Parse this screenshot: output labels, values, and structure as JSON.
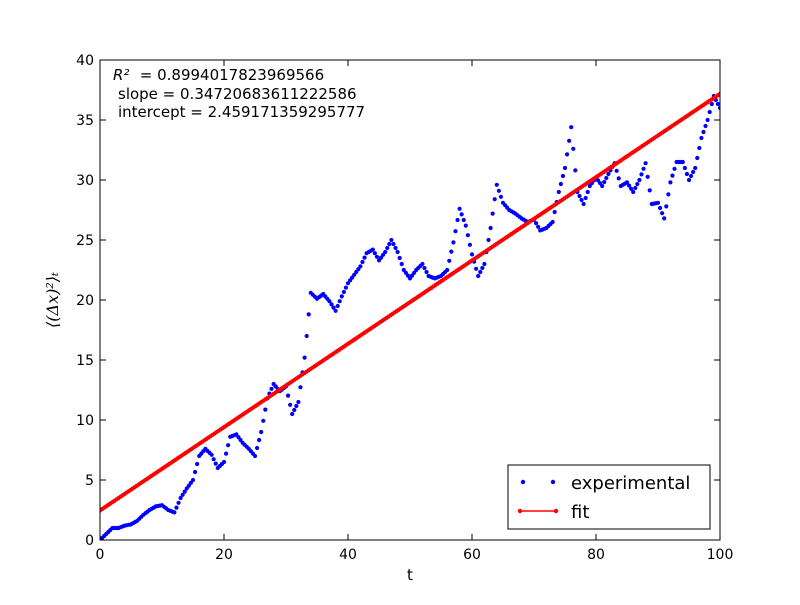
{
  "chart_data": {
    "type": "scatter",
    "xlabel": "t",
    "ylabel": "⟨(Δx)²⟩ₜ",
    "xlim": [
      0,
      100
    ],
    "ylim": [
      0,
      40
    ],
    "x_ticks": [
      0,
      20,
      40,
      60,
      80,
      100
    ],
    "y_ticks": [
      0,
      5,
      10,
      15,
      20,
      25,
      30,
      35,
      40
    ],
    "grid": false,
    "legend_position": "bottom-right",
    "annotations": {
      "r2_symbol": "R²",
      "r2_value": " = 0.8994017823969566",
      "slope": "slope = 0.34720683611222586",
      "intercept": "intercept = 2.459171359295777"
    },
    "series": [
      {
        "name": "experimental",
        "color": "#0000ff",
        "marker": "dot",
        "points": [
          [
            0,
            0
          ],
          [
            1,
            0.5
          ],
          [
            2,
            1.0
          ],
          [
            3,
            1.0
          ],
          [
            4,
            1.2
          ],
          [
            5,
            1.3
          ],
          [
            6,
            1.6
          ],
          [
            7,
            2.1
          ],
          [
            8,
            2.5
          ],
          [
            9,
            2.8
          ],
          [
            10,
            2.9
          ],
          [
            11,
            2.5
          ],
          [
            12,
            2.3
          ],
          [
            13,
            3.5
          ],
          [
            14,
            4.3
          ],
          [
            15,
            5.0
          ],
          [
            16,
            7.0
          ],
          [
            17,
            7.6
          ],
          [
            18,
            7.1
          ],
          [
            19,
            6.0
          ],
          [
            20,
            6.5
          ],
          [
            21,
            8.6
          ],
          [
            22,
            8.8
          ],
          [
            23,
            8.1
          ],
          [
            24,
            7.6
          ],
          [
            25,
            7.0
          ],
          [
            26,
            9.0
          ],
          [
            27,
            11.8
          ],
          [
            28,
            13.0
          ],
          [
            29,
            12.4
          ],
          [
            30,
            12.8
          ],
          [
            31,
            10.5
          ],
          [
            32,
            11.5
          ],
          [
            33,
            15.2
          ],
          [
            34,
            20.6
          ],
          [
            35,
            20.1
          ],
          [
            36,
            20.5
          ],
          [
            37,
            19.9
          ],
          [
            38,
            19.1
          ],
          [
            39,
            20.3
          ],
          [
            40,
            21.4
          ],
          [
            41,
            22.1
          ],
          [
            42,
            22.8
          ],
          [
            43,
            23.9
          ],
          [
            44,
            24.2
          ],
          [
            45,
            23.3
          ],
          [
            46,
            24.0
          ],
          [
            47,
            25.0
          ],
          [
            48,
            24.0
          ],
          [
            49,
            22.5
          ],
          [
            50,
            21.8
          ],
          [
            51,
            22.5
          ],
          [
            52,
            23.0
          ],
          [
            53,
            22.0
          ],
          [
            54,
            21.8
          ],
          [
            55,
            22.0
          ],
          [
            56,
            22.5
          ],
          [
            57,
            24.8
          ],
          [
            58,
            27.6
          ],
          [
            59,
            26.2
          ],
          [
            60,
            23.8
          ],
          [
            61,
            22.0
          ],
          [
            62,
            23.0
          ],
          [
            63,
            26.0
          ],
          [
            64,
            29.6
          ],
          [
            65,
            28.1
          ],
          [
            66,
            27.5
          ],
          [
            67,
            27.2
          ],
          [
            68,
            26.8
          ],
          [
            69,
            26.5
          ],
          [
            70,
            26.7
          ],
          [
            71,
            25.8
          ],
          [
            72,
            26.0
          ],
          [
            73,
            26.5
          ],
          [
            74,
            29.0
          ],
          [
            75,
            31.0
          ],
          [
            76,
            34.4
          ],
          [
            77,
            29.0
          ],
          [
            78,
            28.0
          ],
          [
            79,
            29.5
          ],
          [
            80,
            30.2
          ],
          [
            81,
            29.5
          ],
          [
            82,
            30.5
          ],
          [
            83,
            31.4
          ],
          [
            84,
            29.5
          ],
          [
            85,
            29.8
          ],
          [
            86,
            29.0
          ],
          [
            87,
            30.0
          ],
          [
            88,
            31.4
          ],
          [
            89,
            28.0
          ],
          [
            90,
            28.1
          ],
          [
            91,
            26.8
          ],
          [
            92,
            29.8
          ],
          [
            93,
            31.5
          ],
          [
            94,
            31.5
          ],
          [
            95,
            30.0
          ],
          [
            96,
            31.0
          ],
          [
            97,
            33.5
          ],
          [
            98,
            35.0
          ],
          [
            99,
            37.0
          ],
          [
            100,
            36.0
          ]
        ]
      },
      {
        "name": "fit",
        "color": "#ff0000",
        "marker": "line",
        "slope": 0.34720683611222586,
        "intercept": 2.459171359295777
      }
    ]
  }
}
